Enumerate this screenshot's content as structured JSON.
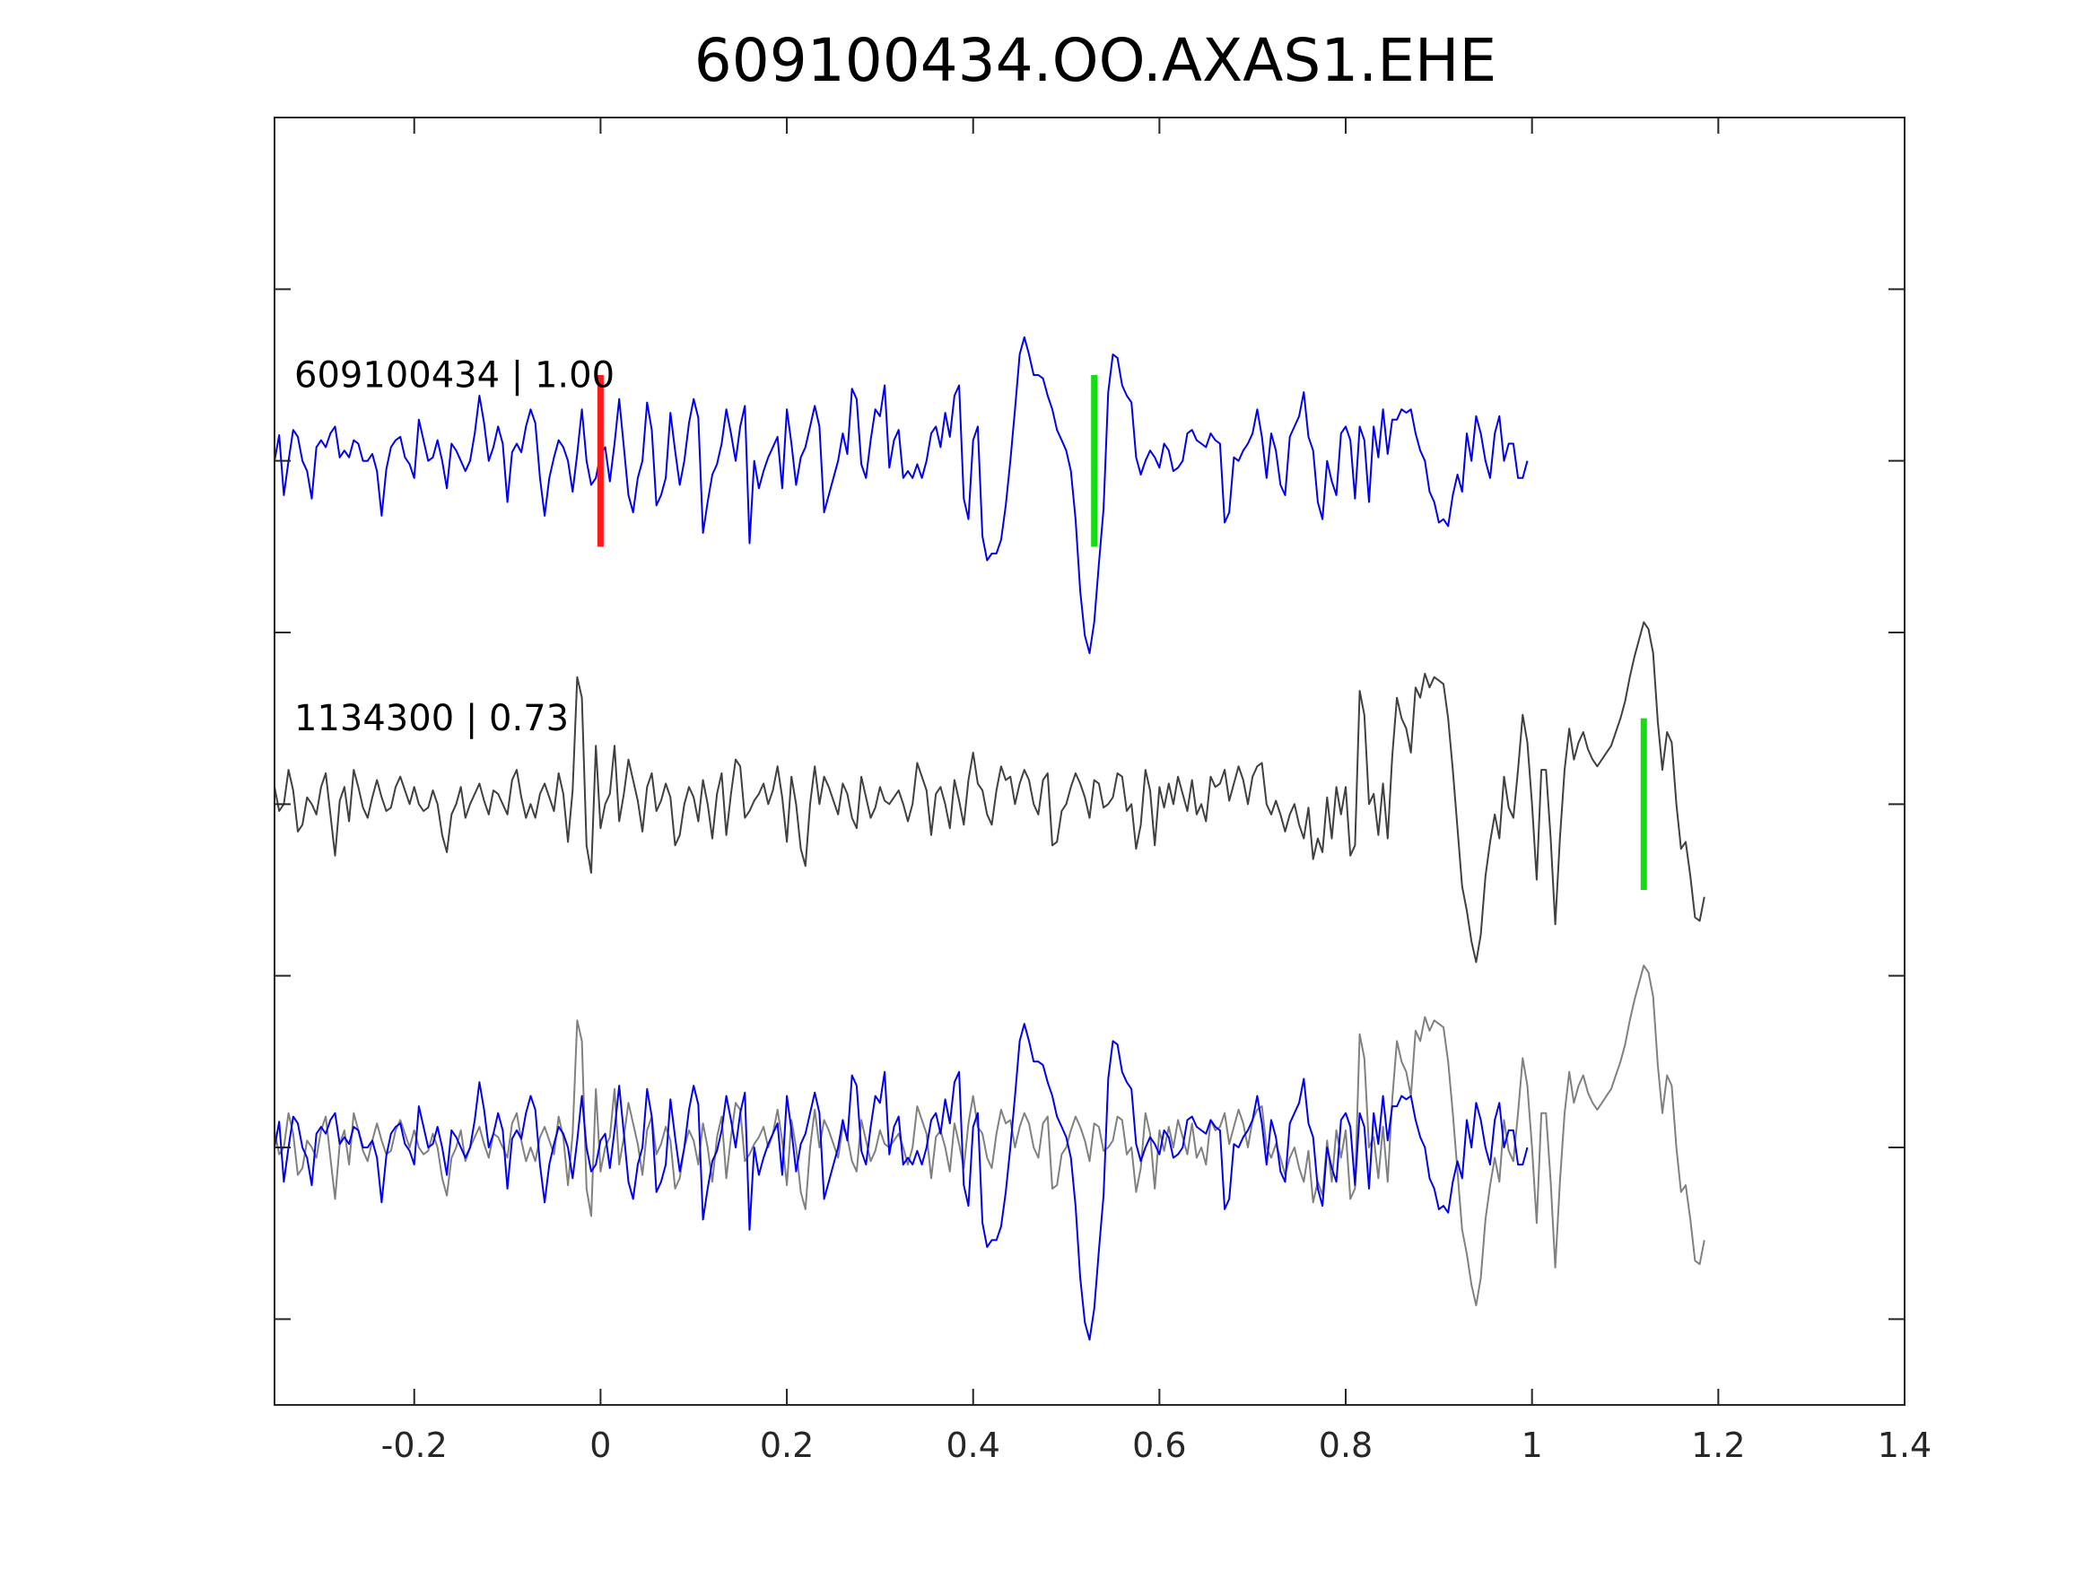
{
  "chart_data": {
    "type": "line",
    "title": "609100434.OO.AXAS1.EHE",
    "xlabel": "",
    "ylabel": "",
    "xlim": [
      -0.35,
      1.4
    ],
    "x_ticks": [
      -0.2,
      0,
      0.2,
      0.4,
      0.6,
      0.8,
      1,
      1.2,
      1.4
    ],
    "x_tick_labels": [
      "-0.2",
      "0",
      "0.2",
      "0.4",
      "0.6",
      "0.8",
      "1",
      "1.2",
      "1.4"
    ],
    "ylim": [
      -0.5,
      7
    ],
    "y_ticks": [
      0,
      1,
      2,
      3,
      4,
      5,
      6
    ],
    "grid": false,
    "legend": "none",
    "colors": {
      "template": "#0000ee",
      "detection": "#404040",
      "detection_overlay": "#808080",
      "p_pick": "#ff1a1a",
      "s_pick": "#11dd11",
      "axes": "#262626"
    },
    "series": [
      {
        "name": "609100434 | 1.00",
        "offset": 5,
        "color": "#0000ee",
        "x0": -0.35,
        "dt": 0.005,
        "values": [
          0.0,
          0.15,
          -0.2,
          0.0,
          0.18,
          0.14,
          0.0,
          -0.06,
          -0.22,
          0.08,
          0.12,
          0.08,
          0.16,
          0.2,
          0.02,
          0.06,
          0.02,
          0.12,
          0.1,
          0.0,
          0.0,
          0.04,
          -0.06,
          -0.32,
          -0.05,
          0.08,
          0.12,
          0.14,
          0.02,
          -0.02,
          -0.1,
          0.24,
          0.12,
          0.0,
          0.02,
          0.12,
          0.0,
          -0.16,
          0.1,
          0.06,
          0.0,
          -0.06,
          0.0,
          0.16,
          0.38,
          0.22,
          0.0,
          0.08,
          0.2,
          0.1,
          -0.24,
          0.05,
          0.1,
          0.05,
          0.2,
          0.3,
          0.22,
          -0.1,
          -0.32,
          -0.1,
          0.02,
          0.12,
          0.08,
          0.0,
          -0.18,
          0.04,
          0.3,
          0.0,
          -0.14,
          -0.1,
          0.04,
          0.08,
          -0.12,
          0.1,
          0.36,
          0.08,
          -0.2,
          -0.3,
          -0.1,
          0.0,
          0.34,
          0.18,
          -0.26,
          -0.2,
          -0.1,
          0.28,
          0.06,
          -0.14,
          0.0,
          0.22,
          0.36,
          0.25,
          -0.42,
          -0.24,
          -0.08,
          -0.02,
          0.1,
          0.3,
          0.16,
          0.0,
          0.2,
          0.32,
          -0.48,
          0.0,
          -0.16,
          -0.06,
          0.02,
          0.08,
          0.14,
          -0.16,
          0.3,
          0.1,
          -0.14,
          0.02,
          0.08,
          0.2,
          0.32,
          0.2,
          -0.3,
          -0.2,
          -0.1,
          0.0,
          0.16,
          0.04,
          0.42,
          0.36,
          -0.02,
          -0.1,
          0.12,
          0.3,
          0.26,
          0.44,
          -0.04,
          0.12,
          0.18,
          -0.1,
          -0.06,
          -0.1,
          -0.02,
          -0.1,
          0.0,
          0.16,
          0.2,
          0.08,
          0.28,
          0.14,
          0.38,
          0.44,
          -0.22,
          -0.34,
          0.12,
          0.2,
          -0.44,
          -0.58,
          -0.54,
          -0.54,
          -0.46,
          -0.26,
          0.0,
          0.3,
          0.62,
          0.72,
          0.62,
          0.5,
          0.5,
          0.48,
          0.38,
          0.3,
          0.18,
          0.12,
          0.06,
          -0.06,
          -0.34,
          -0.76,
          -1.02,
          -1.12,
          -0.94,
          -0.6,
          -0.28,
          0.4,
          0.62,
          0.6,
          0.44,
          0.38,
          0.34,
          0.02,
          -0.08,
          0.0,
          0.06,
          0.02,
          -0.04,
          0.1,
          0.06,
          -0.06,
          -0.04,
          0.0,
          0.16,
          0.18,
          0.12,
          0.1,
          0.08,
          0.16,
          0.12,
          0.1,
          -0.36,
          -0.3,
          0.02,
          0.0,
          0.06,
          0.1,
          0.16,
          0.3,
          0.14,
          -0.1,
          0.16,
          0.06,
          -0.14,
          -0.2,
          0.14,
          0.2,
          0.26,
          0.4,
          0.14,
          0.06,
          -0.24,
          -0.34,
          0.0,
          -0.12,
          -0.2,
          0.16,
          0.2,
          0.12,
          -0.22,
          0.2,
          0.12,
          -0.24,
          0.2,
          0.02,
          0.3,
          0.04,
          0.24,
          0.24,
          0.3,
          0.28,
          0.3,
          0.16,
          0.06,
          0.0,
          -0.18,
          -0.24,
          -0.36,
          -0.34,
          -0.38,
          -0.2,
          -0.08,
          -0.18,
          0.16,
          0.0,
          0.26,
          0.16,
          0.0,
          -0.1,
          0.16,
          0.26,
          0.0,
          0.1,
          0.1,
          -0.1,
          -0.1,
          0.0
        ]
      },
      {
        "name": "1134300 | 0.73",
        "offset": 3,
        "color": "#404040",
        "x0": -0.35,
        "dt": 0.005,
        "values": [
          0.1,
          -0.04,
          0.0,
          0.2,
          0.08,
          -0.16,
          -0.12,
          0.04,
          0.0,
          -0.06,
          0.1,
          0.18,
          -0.06,
          -0.3,
          0.02,
          0.1,
          -0.1,
          0.2,
          0.1,
          -0.02,
          -0.08,
          0.04,
          0.14,
          0.04,
          -0.04,
          -0.02,
          0.1,
          0.16,
          0.08,
          0.0,
          0.1,
          0.0,
          -0.04,
          -0.02,
          0.08,
          0.0,
          -0.18,
          -0.28,
          -0.06,
          0.0,
          0.1,
          -0.08,
          0.0,
          0.06,
          0.12,
          0.02,
          -0.06,
          0.08,
          0.06,
          0.0,
          -0.06,
          0.14,
          0.2,
          0.04,
          -0.08,
          0.0,
          -0.08,
          0.06,
          0.12,
          0.04,
          -0.04,
          0.18,
          0.06,
          -0.22,
          0.08,
          0.74,
          0.62,
          -0.24,
          -0.4,
          0.34,
          -0.14,
          0.0,
          0.06,
          0.34,
          -0.1,
          0.06,
          0.26,
          0.14,
          0.02,
          -0.16,
          0.1,
          0.18,
          -0.04,
          0.02,
          0.12,
          0.04,
          -0.24,
          -0.18,
          0.0,
          0.1,
          0.04,
          -0.1,
          0.14,
          0.0,
          -0.2,
          0.06,
          0.18,
          -0.18,
          0.06,
          0.26,
          0.22,
          -0.08,
          -0.04,
          0.02,
          0.06,
          0.12,
          0.0,
          0.08,
          0.22,
          0.04,
          -0.22,
          0.16,
          0.0,
          -0.26,
          -0.36,
          0.0,
          0.22,
          0.0,
          0.16,
          0.1,
          0.02,
          -0.06,
          0.12,
          0.06,
          -0.08,
          -0.14,
          0.16,
          0.04,
          -0.08,
          -0.02,
          0.1,
          0.02,
          0.0,
          0.04,
          0.08,
          0.0,
          -0.1,
          0.0,
          0.24,
          0.16,
          0.08,
          -0.18,
          0.06,
          0.1,
          0.0,
          -0.14,
          0.14,
          0.02,
          -0.12,
          0.14,
          0.3,
          0.12,
          0.08,
          -0.06,
          -0.12,
          0.08,
          0.22,
          0.14,
          0.16,
          0.0,
          0.12,
          0.2,
          0.14,
          0.0,
          -0.06,
          0.14,
          0.18,
          -0.24,
          -0.22,
          -0.04,
          0.0,
          0.1,
          0.18,
          0.12,
          0.04,
          -0.08,
          0.14,
          0.12,
          -0.02,
          0.0,
          0.04,
          0.18,
          0.16,
          -0.04,
          0.0,
          -0.26,
          -0.12,
          0.2,
          0.08,
          -0.24,
          0.1,
          -0.02,
          0.12,
          0.0,
          0.16,
          0.06,
          -0.04,
          0.14,
          -0.06,
          0.0,
          -0.1,
          0.16,
          0.1,
          0.12,
          0.2,
          0.02,
          0.12,
          0.22,
          0.14,
          0.0,
          0.16,
          0.22,
          0.24,
          0.0,
          -0.06,
          0.02,
          -0.06,
          -0.16,
          -0.06,
          0.0,
          -0.12,
          -0.2,
          -0.02,
          -0.32,
          -0.2,
          -0.28,
          0.04,
          -0.2,
          0.1,
          -0.06,
          0.1,
          -0.3,
          -0.24,
          0.66,
          0.52,
          0.0,
          0.06,
          -0.18,
          0.12,
          -0.2,
          0.28,
          0.62,
          0.5,
          0.44,
          0.3,
          0.68,
          0.62,
          0.76,
          0.68,
          0.74,
          0.72,
          0.7,
          0.5,
          0.2,
          -0.14,
          -0.48,
          -0.62,
          -0.8,
          -0.92,
          -0.76,
          -0.42,
          -0.22,
          -0.06,
          -0.2,
          0.16,
          -0.02,
          -0.08,
          0.2,
          0.52,
          0.36,
          0.0,
          -0.44,
          0.2,
          0.2,
          -0.2,
          -0.7,
          -0.2,
          0.2,
          0.44,
          0.26,
          0.36,
          0.42,
          0.32,
          0.26,
          0.22,
          0.26,
          0.3,
          0.34,
          0.42,
          0.5,
          0.6,
          0.74,
          0.86,
          0.96,
          1.06,
          1.02,
          0.88,
          0.48,
          0.2,
          0.42,
          0.36,
          0.0,
          -0.26,
          -0.22,
          -0.42,
          -0.66,
          -0.68,
          -0.54
        ]
      }
    ],
    "overlay": {
      "offset": 1,
      "series_indices": [
        1,
        0
      ]
    },
    "picks": [
      {
        "type": "P",
        "series": 0,
        "x": 0.0,
        "color": "#ff1a1a"
      },
      {
        "type": "S",
        "series": 0,
        "x": 0.53,
        "color": "#11dd11"
      },
      {
        "type": "S",
        "series": 1,
        "x": 1.12,
        "color": "#11dd11"
      }
    ],
    "annotations": [
      {
        "text": "609100434 | 1.00",
        "series": 0
      },
      {
        "text": "1134300 | 0.73",
        "series": 1
      }
    ]
  }
}
